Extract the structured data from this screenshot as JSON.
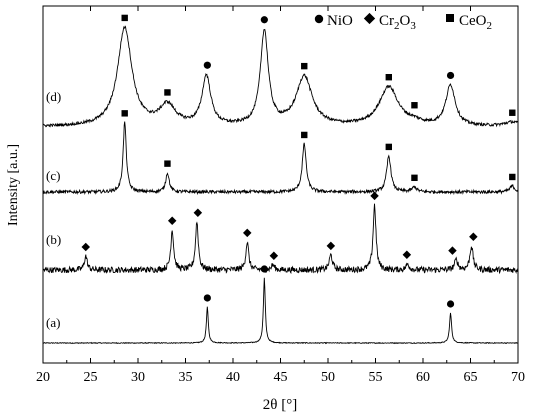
{
  "chart_data": {
    "type": "line",
    "xlabel": "2θ [°]",
    "ylabel": "Intensity [a.u.]",
    "xlim": [
      20,
      70
    ],
    "xticks": [
      20,
      25,
      30,
      35,
      40,
      45,
      50,
      55,
      60,
      65,
      70
    ],
    "legend": {
      "placement": "top-right",
      "entries": [
        {
          "marker": "circle",
          "label": "NiO"
        },
        {
          "marker": "diamond",
          "label": "Cr",
          "sub1": "2",
          "mid": "O",
          "sub2": "3"
        },
        {
          "marker": "square",
          "label": "CeO",
          "sub1": "2"
        }
      ]
    },
    "series": [
      {
        "name": "(a)",
        "baseline": 0,
        "noise": 0.4,
        "peaks": [
          [
            37.3,
            36,
            0.12
          ],
          [
            43.3,
            65,
            0.12
          ],
          [
            62.9,
            30,
            0.13
          ]
        ],
        "markers": [
          {
            "type": "circle",
            "x": 37.3
          },
          {
            "type": "circle",
            "x": 43.3
          },
          {
            "type": "circle",
            "x": 62.9
          }
        ]
      },
      {
        "name": "(b)",
        "baseline": 0,
        "noise": 3,
        "peaks": [
          [
            24.5,
            14,
            0.18
          ],
          [
            33.6,
            40,
            0.18
          ],
          [
            36.2,
            48,
            0.18
          ],
          [
            41.5,
            28,
            0.18
          ],
          [
            44.2,
            5,
            0.2
          ],
          [
            50.3,
            15,
            0.2
          ],
          [
            54.9,
            65,
            0.18
          ],
          [
            58.4,
            6,
            0.2
          ],
          [
            63.5,
            10,
            0.22
          ],
          [
            65.1,
            24,
            0.2
          ]
        ],
        "markers": [
          {
            "type": "diamond",
            "x": 24.5
          },
          {
            "type": "diamond",
            "x": 33.6
          },
          {
            "type": "diamond",
            "x": 36.3
          },
          {
            "type": "diamond",
            "x": 41.5
          },
          {
            "type": "diamond",
            "x": 44.3
          },
          {
            "type": "diamond",
            "x": 50.3
          },
          {
            "type": "diamond",
            "x": 54.9
          },
          {
            "type": "diamond",
            "x": 58.3
          },
          {
            "type": "diamond",
            "x": 63.1
          },
          {
            "type": "diamond",
            "x": 65.3
          }
        ]
      },
      {
        "name": "(c)",
        "baseline": 0,
        "noise": 1.3,
        "peaks": [
          [
            28.6,
            58,
            0.2
          ],
          [
            33.1,
            16,
            0.22
          ],
          [
            47.5,
            40,
            0.25
          ],
          [
            56.4,
            30,
            0.27
          ],
          [
            59.1,
            4,
            0.3
          ],
          [
            69.4,
            5,
            0.3
          ]
        ],
        "markers": [
          {
            "type": "square",
            "x": 28.6
          },
          {
            "type": "square",
            "x": 33.1
          },
          {
            "type": "square",
            "x": 47.5
          },
          {
            "type": "square",
            "x": 56.4
          },
          {
            "type": "square",
            "x": 59.1
          },
          {
            "type": "square",
            "x": 69.4
          }
        ]
      },
      {
        "name": "(d)",
        "baseline": 0,
        "noise": 1,
        "peaks": [
          [
            28.6,
            68,
            0.9
          ],
          [
            33.1,
            14,
            1.0
          ],
          [
            37.2,
            34,
            0.55
          ],
          [
            43.3,
            65,
            0.5
          ],
          [
            47.5,
            34,
            1.0
          ],
          [
            56.4,
            27,
            1.2
          ],
          [
            59.1,
            2,
            1.0
          ],
          [
            62.9,
            28,
            0.6
          ],
          [
            69.4,
            3,
            1.0
          ]
        ],
        "markers": [
          {
            "type": "square",
            "x": 28.6
          },
          {
            "type": "square",
            "x": 33.1
          },
          {
            "type": "circle",
            "x": 37.3
          },
          {
            "type": "circle",
            "x": 43.3
          },
          {
            "type": "square",
            "x": 47.5
          },
          {
            "type": "square",
            "x": 56.4
          },
          {
            "type": "square",
            "x": 59.1
          },
          {
            "type": "circle",
            "x": 62.9
          },
          {
            "type": "square",
            "x": 69.4
          }
        ]
      }
    ]
  }
}
